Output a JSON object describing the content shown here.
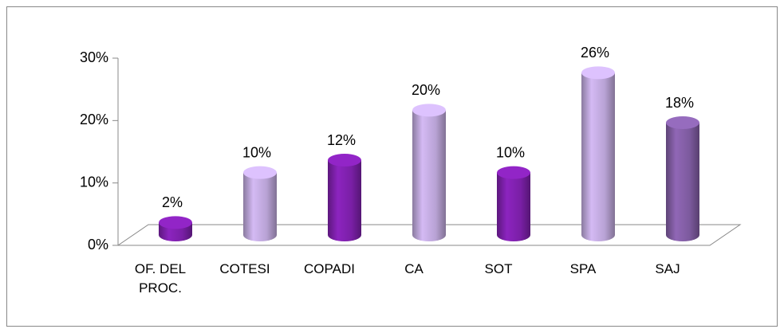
{
  "chart_data": {
    "type": "bar",
    "categories": [
      "OF. DEL PROC.",
      "COTESI",
      "COPADI",
      "CA",
      "SOT",
      "SPA",
      "SAJ"
    ],
    "values": [
      2,
      10,
      12,
      20,
      10,
      26,
      18
    ],
    "value_labels": [
      "2%",
      "10%",
      "12%",
      "20%",
      "10%",
      "26%",
      "18%"
    ],
    "colors": [
      "#7a1fa6",
      "#b8a2d4",
      "#7a1fa6",
      "#b8a2d4",
      "#7a1fa6",
      "#b8a2d4",
      "#7d5a9e"
    ],
    "ylim": [
      0,
      30
    ],
    "yticks": [
      {
        "value": 0,
        "label": "0%"
      },
      {
        "value": 10,
        "label": "10%"
      },
      {
        "value": 20,
        "label": "20%"
      },
      {
        "value": 30,
        "label": "30%"
      }
    ]
  }
}
